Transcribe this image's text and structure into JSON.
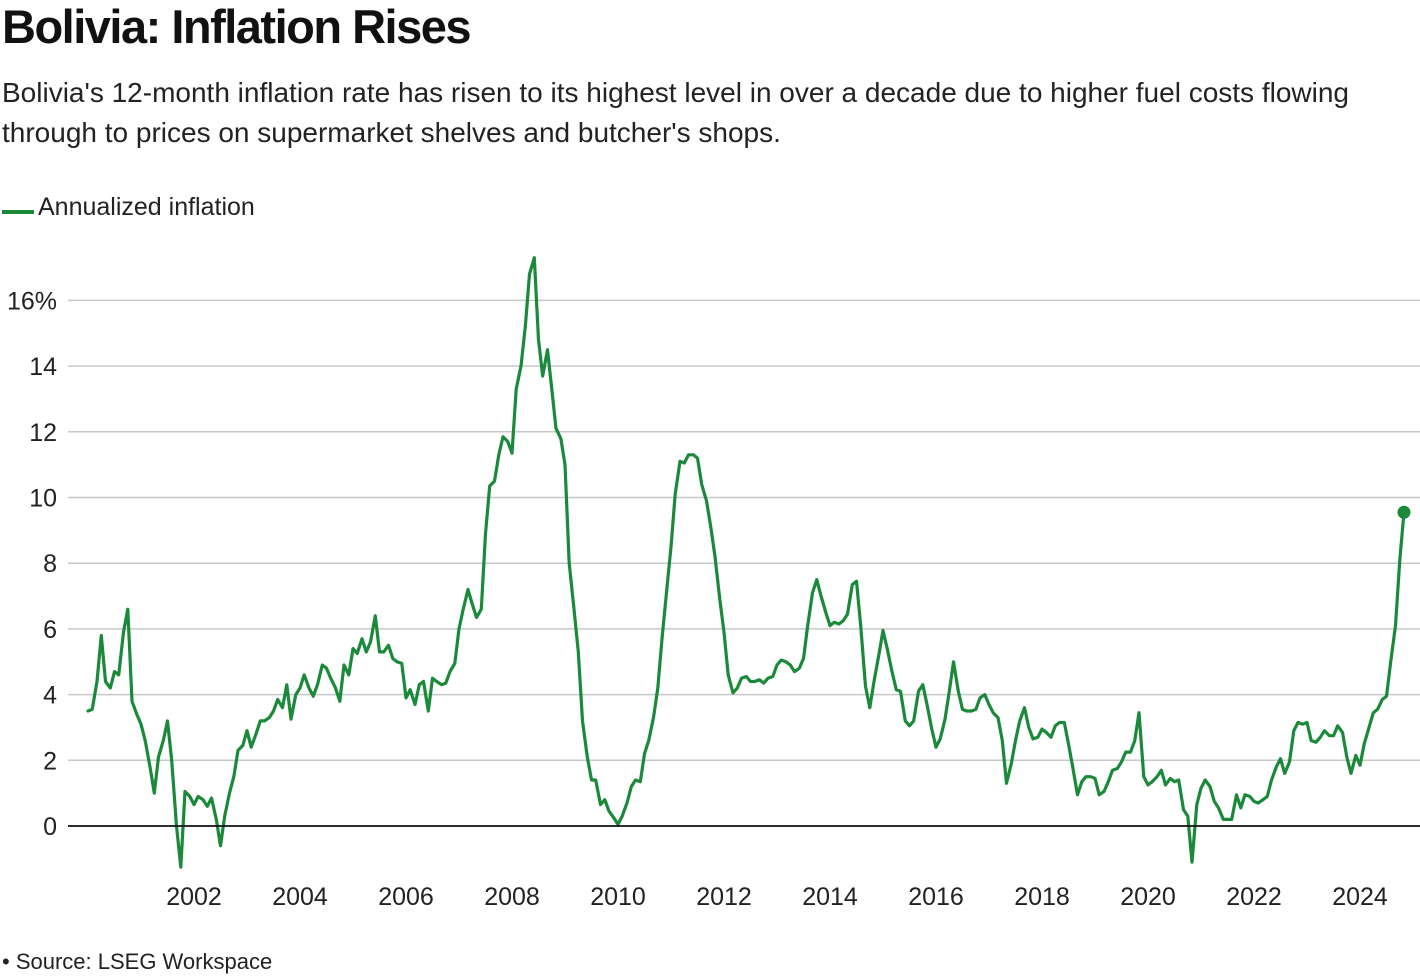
{
  "title": "Bolivia: Inflation Rises",
  "subtitle": "Bolivia's 12-month inflation rate has risen to its highest level in over a decade due to higher fuel costs flowing through to prices on supermarket shelves and butcher's shops.",
  "source": "• Source: LSEG Workspace",
  "colors": {
    "line": "#1a8a3a",
    "grid": "#c8c8c8",
    "zero": "#111111"
  },
  "chart_data": {
    "type": "line",
    "title": "Bolivia: Inflation Rises",
    "xlabel": "",
    "ylabel": "",
    "grid": true,
    "legend_position": "top-left",
    "ylim": [
      -1.3,
      17.3
    ],
    "xlim": [
      2000.0,
      2025.0
    ],
    "y_ticks": [
      0,
      2,
      4,
      6,
      8,
      10,
      12,
      14,
      16
    ],
    "y_tick_labels": [
      "0",
      "2",
      "4",
      "6",
      "8",
      "10",
      "12",
      "14",
      "16%"
    ],
    "x_ticks": [
      2002,
      2004,
      2006,
      2008,
      2010,
      2012,
      2014,
      2016,
      2018,
      2020,
      2022,
      2024
    ],
    "x_tick_labels": [
      "2002",
      "2004",
      "2006",
      "2008",
      "2010",
      "2012",
      "2014",
      "2016",
      "2018",
      "2020",
      "2022",
      "2024"
    ],
    "series": [
      {
        "name": "Annualized inflation",
        "end_marker": true,
        "points": [
          [
            2000.0,
            3.5
          ],
          [
            2000.08,
            3.55
          ],
          [
            2000.17,
            4.4
          ],
          [
            2000.25,
            5.8
          ],
          [
            2000.33,
            4.4
          ],
          [
            2000.42,
            4.2
          ],
          [
            2000.5,
            4.7
          ],
          [
            2000.58,
            4.6
          ],
          [
            2000.67,
            5.9
          ],
          [
            2000.75,
            6.6
          ],
          [
            2000.83,
            3.8
          ],
          [
            2000.92,
            3.4
          ],
          [
            2001.0,
            3.1
          ],
          [
            2001.08,
            2.6
          ],
          [
            2001.17,
            1.8
          ],
          [
            2001.25,
            1.0
          ],
          [
            2001.33,
            2.1
          ],
          [
            2001.42,
            2.6
          ],
          [
            2001.5,
            3.2
          ],
          [
            2001.58,
            2.0
          ],
          [
            2001.67,
            0.0
          ],
          [
            2001.75,
            -1.25
          ],
          [
            2001.83,
            1.05
          ],
          [
            2001.92,
            0.9
          ],
          [
            2002.0,
            0.65
          ],
          [
            2002.08,
            0.9
          ],
          [
            2002.17,
            0.8
          ],
          [
            2002.25,
            0.6
          ],
          [
            2002.33,
            0.85
          ],
          [
            2002.42,
            0.2
          ],
          [
            2002.5,
            -0.6
          ],
          [
            2002.58,
            0.3
          ],
          [
            2002.67,
            1.0
          ],
          [
            2002.75,
            1.5
          ],
          [
            2002.83,
            2.3
          ],
          [
            2002.92,
            2.45
          ],
          [
            2003.0,
            2.9
          ],
          [
            2003.08,
            2.4
          ],
          [
            2003.17,
            2.8
          ],
          [
            2003.25,
            3.2
          ],
          [
            2003.33,
            3.2
          ],
          [
            2003.42,
            3.3
          ],
          [
            2003.5,
            3.5
          ],
          [
            2003.58,
            3.85
          ],
          [
            2003.67,
            3.6
          ],
          [
            2003.75,
            4.3
          ],
          [
            2003.83,
            3.25
          ],
          [
            2003.92,
            4.0
          ],
          [
            2004.0,
            4.2
          ],
          [
            2004.08,
            4.6
          ],
          [
            2004.17,
            4.2
          ],
          [
            2004.25,
            3.95
          ],
          [
            2004.33,
            4.3
          ],
          [
            2004.42,
            4.9
          ],
          [
            2004.5,
            4.8
          ],
          [
            2004.58,
            4.5
          ],
          [
            2004.67,
            4.2
          ],
          [
            2004.75,
            3.8
          ],
          [
            2004.83,
            4.9
          ],
          [
            2004.92,
            4.6
          ],
          [
            2005.0,
            5.4
          ],
          [
            2005.08,
            5.25
          ],
          [
            2005.17,
            5.7
          ],
          [
            2005.25,
            5.3
          ],
          [
            2005.33,
            5.6
          ],
          [
            2005.42,
            6.4
          ],
          [
            2005.5,
            5.3
          ],
          [
            2005.58,
            5.3
          ],
          [
            2005.67,
            5.5
          ],
          [
            2005.75,
            5.1
          ],
          [
            2005.83,
            5.0
          ],
          [
            2005.92,
            4.95
          ],
          [
            2006.0,
            3.9
          ],
          [
            2006.08,
            4.15
          ],
          [
            2006.17,
            3.7
          ],
          [
            2006.25,
            4.3
          ],
          [
            2006.33,
            4.4
          ],
          [
            2006.42,
            3.5
          ],
          [
            2006.5,
            4.5
          ],
          [
            2006.58,
            4.4
          ],
          [
            2006.67,
            4.3
          ],
          [
            2006.75,
            4.35
          ],
          [
            2006.83,
            4.7
          ],
          [
            2006.92,
            4.95
          ],
          [
            2007.0,
            6.0
          ],
          [
            2007.08,
            6.6
          ],
          [
            2007.17,
            7.2
          ],
          [
            2007.25,
            6.75
          ],
          [
            2007.33,
            6.35
          ],
          [
            2007.42,
            6.6
          ],
          [
            2007.5,
            8.9
          ],
          [
            2007.58,
            10.35
          ],
          [
            2007.67,
            10.5
          ],
          [
            2007.75,
            11.3
          ],
          [
            2007.83,
            11.85
          ],
          [
            2007.92,
            11.7
          ],
          [
            2008.0,
            11.35
          ],
          [
            2008.08,
            13.3
          ],
          [
            2008.17,
            14.0
          ],
          [
            2008.25,
            15.2
          ],
          [
            2008.33,
            16.8
          ],
          [
            2008.42,
            17.3
          ],
          [
            2008.5,
            14.8
          ],
          [
            2008.58,
            13.7
          ],
          [
            2008.67,
            14.5
          ],
          [
            2008.75,
            13.3
          ],
          [
            2008.83,
            12.1
          ],
          [
            2008.92,
            11.8
          ],
          [
            2009.0,
            11.0
          ],
          [
            2009.08,
            8.0
          ],
          [
            2009.17,
            6.6
          ],
          [
            2009.25,
            5.3
          ],
          [
            2009.33,
            3.2
          ],
          [
            2009.42,
            2.1
          ],
          [
            2009.5,
            1.4
          ],
          [
            2009.58,
            1.4
          ],
          [
            2009.67,
            0.65
          ],
          [
            2009.75,
            0.8
          ],
          [
            2009.83,
            0.45
          ],
          [
            2009.92,
            0.25
          ],
          [
            2010.0,
            0.05
          ],
          [
            2010.08,
            0.3
          ],
          [
            2010.17,
            0.7
          ],
          [
            2010.25,
            1.2
          ],
          [
            2010.33,
            1.4
          ],
          [
            2010.42,
            1.35
          ],
          [
            2010.5,
            2.2
          ],
          [
            2010.58,
            2.6
          ],
          [
            2010.67,
            3.3
          ],
          [
            2010.75,
            4.2
          ],
          [
            2010.83,
            5.7
          ],
          [
            2010.92,
            7.2
          ],
          [
            2011.0,
            8.5
          ],
          [
            2011.08,
            10.1
          ],
          [
            2011.17,
            11.1
          ],
          [
            2011.25,
            11.05
          ],
          [
            2011.33,
            11.3
          ],
          [
            2011.42,
            11.3
          ],
          [
            2011.5,
            11.2
          ],
          [
            2011.58,
            10.4
          ],
          [
            2011.67,
            9.9
          ],
          [
            2011.75,
            9.1
          ],
          [
            2011.83,
            8.2
          ],
          [
            2011.92,
            6.9
          ],
          [
            2012.0,
            5.9
          ],
          [
            2012.08,
            4.6
          ],
          [
            2012.17,
            4.05
          ],
          [
            2012.25,
            4.2
          ],
          [
            2012.33,
            4.5
          ],
          [
            2012.42,
            4.55
          ],
          [
            2012.5,
            4.4
          ],
          [
            2012.58,
            4.4
          ],
          [
            2012.67,
            4.45
          ],
          [
            2012.75,
            4.35
          ],
          [
            2012.83,
            4.5
          ],
          [
            2012.92,
            4.55
          ],
          [
            2013.0,
            4.9
          ],
          [
            2013.08,
            5.05
          ],
          [
            2013.17,
            5.0
          ],
          [
            2013.25,
            4.9
          ],
          [
            2013.33,
            4.7
          ],
          [
            2013.42,
            4.8
          ],
          [
            2013.5,
            5.1
          ],
          [
            2013.58,
            6.1
          ],
          [
            2013.67,
            7.1
          ],
          [
            2013.75,
            7.5
          ],
          [
            2013.83,
            7.0
          ],
          [
            2013.92,
            6.5
          ],
          [
            2014.0,
            6.1
          ],
          [
            2014.08,
            6.2
          ],
          [
            2014.17,
            6.15
          ],
          [
            2014.25,
            6.25
          ],
          [
            2014.33,
            6.45
          ],
          [
            2014.42,
            7.35
          ],
          [
            2014.5,
            7.45
          ],
          [
            2014.58,
            6.1
          ],
          [
            2014.67,
            4.25
          ],
          [
            2014.75,
            3.6
          ],
          [
            2014.83,
            4.4
          ],
          [
            2014.92,
            5.2
          ],
          [
            2015.0,
            5.95
          ],
          [
            2015.08,
            5.4
          ],
          [
            2015.17,
            4.7
          ],
          [
            2015.25,
            4.15
          ],
          [
            2015.33,
            4.1
          ],
          [
            2015.42,
            3.2
          ],
          [
            2015.5,
            3.05
          ],
          [
            2015.58,
            3.2
          ],
          [
            2015.67,
            4.1
          ],
          [
            2015.75,
            4.3
          ],
          [
            2015.83,
            3.7
          ],
          [
            2015.92,
            2.95
          ],
          [
            2016.0,
            2.4
          ],
          [
            2016.08,
            2.65
          ],
          [
            2016.17,
            3.25
          ],
          [
            2016.25,
            4.1
          ],
          [
            2016.33,
            5.0
          ],
          [
            2016.42,
            4.1
          ],
          [
            2016.5,
            3.55
          ],
          [
            2016.58,
            3.5
          ],
          [
            2016.67,
            3.5
          ],
          [
            2016.75,
            3.55
          ],
          [
            2016.83,
            3.9
          ],
          [
            2016.92,
            4.0
          ],
          [
            2017.0,
            3.7
          ],
          [
            2017.08,
            3.45
          ],
          [
            2017.17,
            3.3
          ],
          [
            2017.25,
            2.6
          ],
          [
            2017.33,
            1.3
          ],
          [
            2017.42,
            1.9
          ],
          [
            2017.5,
            2.6
          ],
          [
            2017.58,
            3.2
          ],
          [
            2017.67,
            3.6
          ],
          [
            2017.75,
            3.0
          ],
          [
            2017.83,
            2.65
          ],
          [
            2017.92,
            2.7
          ],
          [
            2018.0,
            2.95
          ],
          [
            2018.08,
            2.85
          ],
          [
            2018.17,
            2.7
          ],
          [
            2018.25,
            3.05
          ],
          [
            2018.33,
            3.15
          ],
          [
            2018.42,
            3.15
          ],
          [
            2018.5,
            2.5
          ],
          [
            2018.58,
            1.8
          ],
          [
            2018.67,
            0.95
          ],
          [
            2018.75,
            1.35
          ],
          [
            2018.83,
            1.5
          ],
          [
            2018.92,
            1.5
          ],
          [
            2019.0,
            1.45
          ],
          [
            2019.08,
            0.95
          ],
          [
            2019.17,
            1.05
          ],
          [
            2019.25,
            1.35
          ],
          [
            2019.33,
            1.7
          ],
          [
            2019.42,
            1.75
          ],
          [
            2019.5,
            1.95
          ],
          [
            2019.58,
            2.25
          ],
          [
            2019.67,
            2.25
          ],
          [
            2019.75,
            2.6
          ],
          [
            2019.83,
            3.45
          ],
          [
            2019.92,
            1.5
          ],
          [
            2020.0,
            1.25
          ],
          [
            2020.08,
            1.35
          ],
          [
            2020.17,
            1.5
          ],
          [
            2020.25,
            1.7
          ],
          [
            2020.33,
            1.25
          ],
          [
            2020.42,
            1.45
          ],
          [
            2020.5,
            1.35
          ],
          [
            2020.58,
            1.4
          ],
          [
            2020.67,
            0.5
          ],
          [
            2020.75,
            0.3
          ],
          [
            2020.83,
            -1.1
          ],
          [
            2020.92,
            0.65
          ],
          [
            2021.0,
            1.15
          ],
          [
            2021.08,
            1.4
          ],
          [
            2021.17,
            1.2
          ],
          [
            2021.25,
            0.75
          ],
          [
            2021.33,
            0.55
          ],
          [
            2021.42,
            0.2
          ],
          [
            2021.5,
            0.2
          ],
          [
            2021.58,
            0.2
          ],
          [
            2021.67,
            0.95
          ],
          [
            2021.75,
            0.55
          ],
          [
            2021.83,
            0.95
          ],
          [
            2021.92,
            0.9
          ],
          [
            2022.0,
            0.75
          ],
          [
            2022.08,
            0.7
          ],
          [
            2022.17,
            0.8
          ],
          [
            2022.25,
            0.9
          ],
          [
            2022.33,
            1.4
          ],
          [
            2022.42,
            1.8
          ],
          [
            2022.5,
            2.05
          ],
          [
            2022.58,
            1.6
          ],
          [
            2022.67,
            1.95
          ],
          [
            2022.75,
            2.9
          ],
          [
            2022.83,
            3.15
          ],
          [
            2022.92,
            3.1
          ],
          [
            2023.0,
            3.15
          ],
          [
            2023.08,
            2.6
          ],
          [
            2023.17,
            2.55
          ],
          [
            2023.25,
            2.7
          ],
          [
            2023.33,
            2.9
          ],
          [
            2023.42,
            2.75
          ],
          [
            2023.5,
            2.75
          ],
          [
            2023.58,
            3.05
          ],
          [
            2023.67,
            2.85
          ],
          [
            2023.75,
            2.1
          ],
          [
            2023.83,
            1.6
          ],
          [
            2023.92,
            2.15
          ],
          [
            2024.0,
            1.85
          ],
          [
            2024.08,
            2.5
          ],
          [
            2024.17,
            3.0
          ],
          [
            2024.25,
            3.45
          ],
          [
            2024.33,
            3.55
          ],
          [
            2024.42,
            3.85
          ],
          [
            2024.5,
            3.95
          ],
          [
            2024.58,
            5.0
          ],
          [
            2024.67,
            6.1
          ],
          [
            2024.75,
            8.1
          ],
          [
            2024.83,
            9.55
          ]
        ]
      }
    ]
  }
}
